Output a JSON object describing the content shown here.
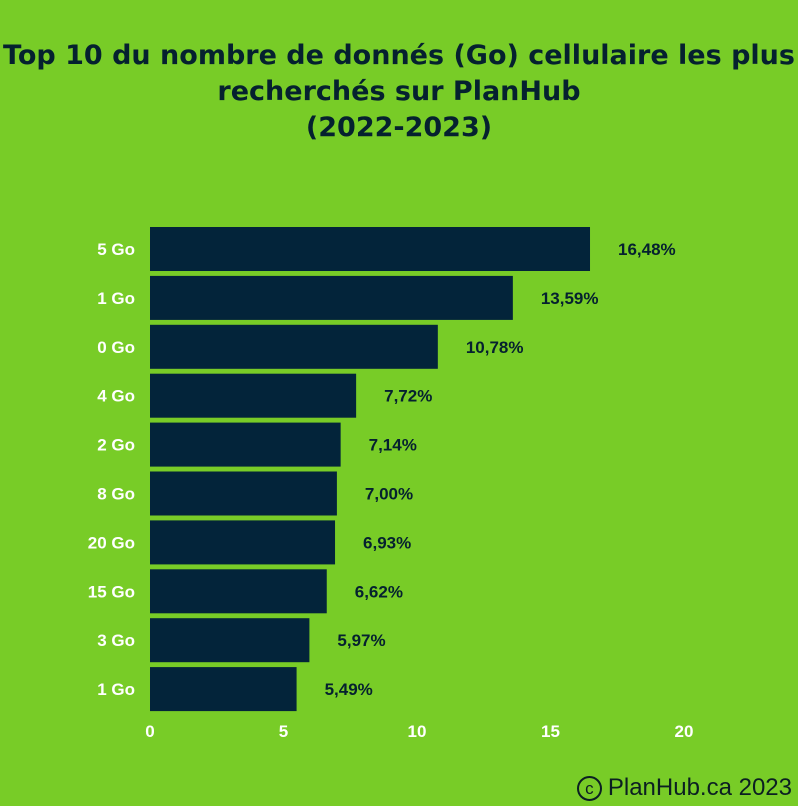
{
  "chart_data": {
    "type": "bar",
    "orientation": "horizontal",
    "title_lines": [
      "Top 10 du nombre de donnés (Go) cellulaire les plus",
      "recherchés sur PlanHub",
      "(2022-2023)"
    ],
    "categories": [
      "5 Go",
      "1 Go",
      "0 Go",
      "4 Go",
      "2 Go",
      "8 Go",
      "20 Go",
      "15 Go",
      "3 Go",
      "1 Go"
    ],
    "values": [
      16.48,
      13.59,
      10.78,
      7.72,
      7.14,
      7.0,
      6.93,
      6.62,
      5.97,
      5.49
    ],
    "value_labels": [
      "16,48%",
      "13,59%",
      "10,78%",
      "7,72%",
      "7,14%",
      "7,00%",
      "6,93%",
      "6,62%",
      "5,97%",
      "5,49%"
    ],
    "xlim": [
      0,
      20
    ],
    "x_ticks": [
      0,
      5,
      10,
      15,
      20
    ],
    "grid": false,
    "legend": "none",
    "colors": {
      "background": "#78cc27",
      "bar": "#03243a",
      "text": "#05212f",
      "tick_text": "#ffffff"
    }
  },
  "footer": {
    "copyright_icon": "copyright-icon",
    "copyright_symbol": "c",
    "text": "PlanHub.ca 2023"
  }
}
